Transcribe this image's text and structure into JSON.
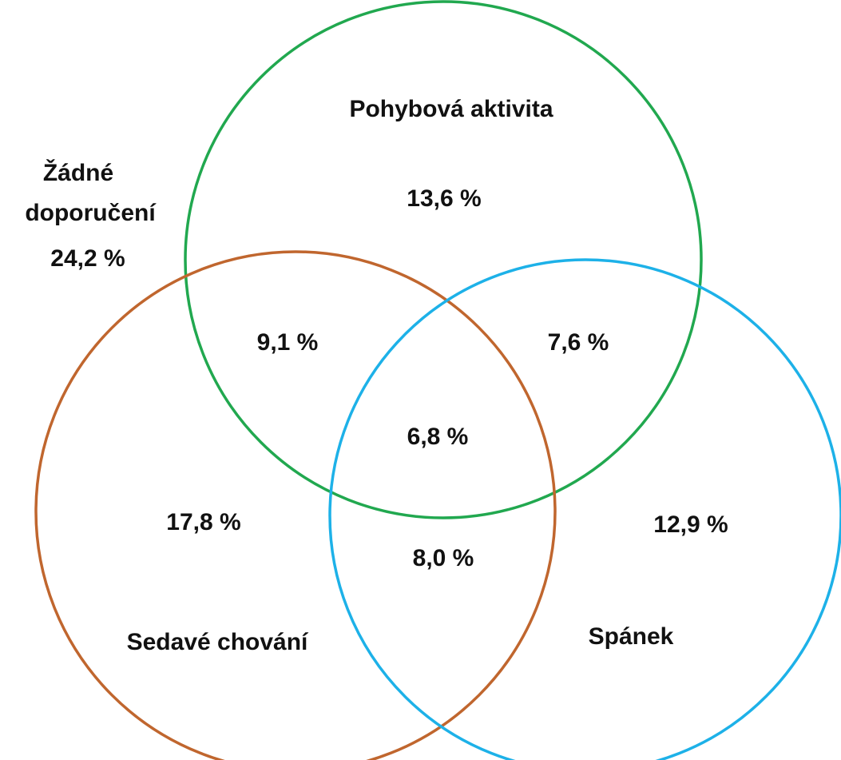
{
  "sets": [
    {
      "name": "Pohybová aktivita",
      "color": "#21a84f"
    },
    {
      "name": "Sedavé chování",
      "color": "#c0662e"
    },
    {
      "name": "Spánek",
      "color": "#1db1e8"
    }
  ],
  "outside": {
    "label": [
      "Žádné",
      "doporučení"
    ],
    "value": "24,2 %"
  },
  "regions": {
    "activity_only": "13,6 %",
    "sedentary_only": "17,8 %",
    "sleep_only": "12,9 %",
    "activity_sedentary": "9,1 %",
    "activity_sleep": "7,6 %",
    "sedentary_sleep": "8,0 %",
    "all": "6,8 %"
  }
}
